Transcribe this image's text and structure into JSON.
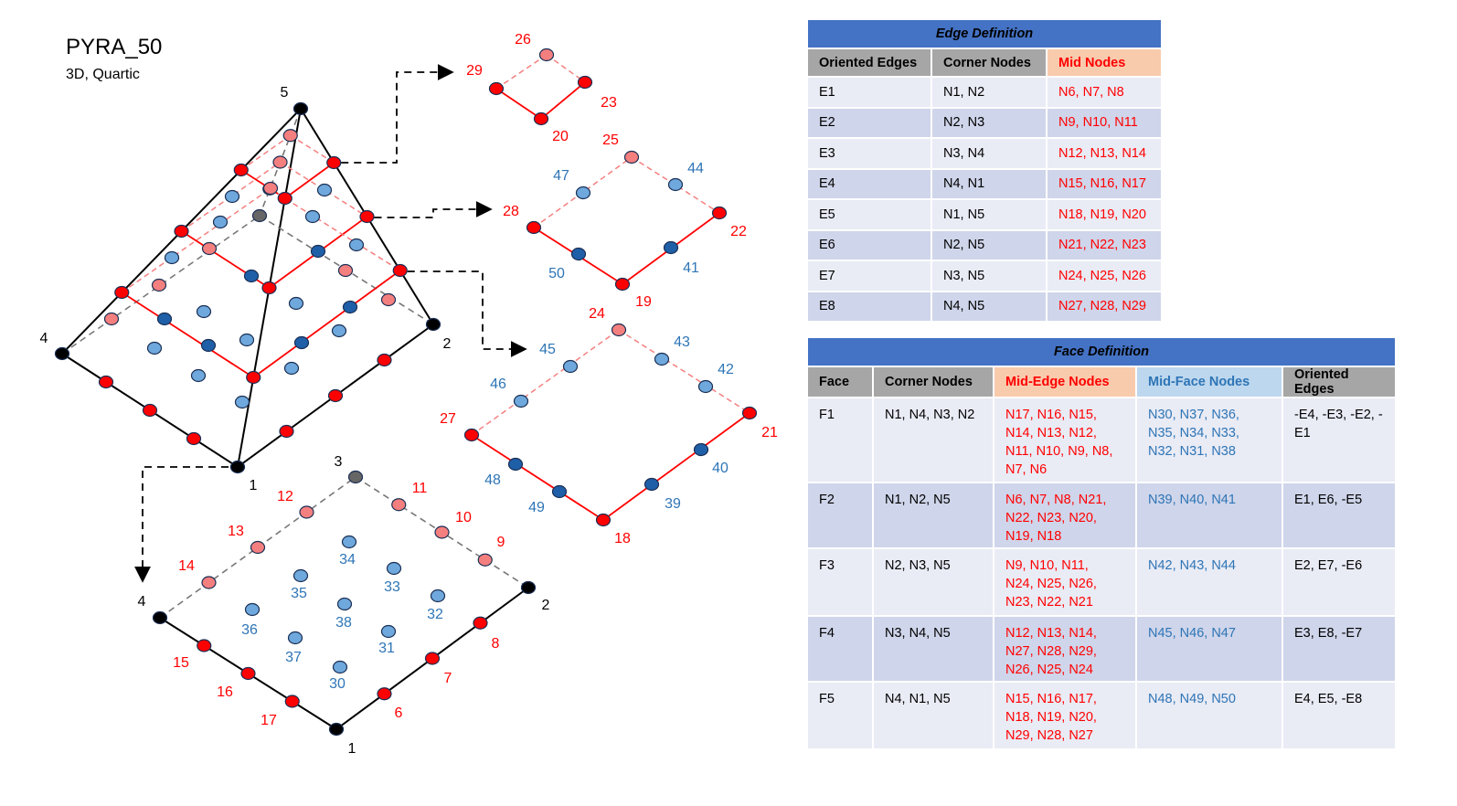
{
  "title": "PYRA_50",
  "subtitle": "3D, Quartic",
  "colors": {
    "corner_node": "#000000",
    "mid_edge_node": "#ff0000",
    "mid_edge_hidden_node": "#f47f7f",
    "mid_face_node": "#6fa8dc",
    "mid_face_dark_node": "#1f5fa8",
    "hidden_corner_node": "#666666",
    "edge_line": "#000000",
    "section_line": "#ff0000",
    "label_red": "#ff0000",
    "label_blue": "#2e75b6"
  },
  "pyramid_labels": {
    "apex": "5",
    "front": "1",
    "right": "2",
    "left": "4"
  },
  "base_labels": {
    "corners": {
      "c1": "1",
      "c2": "2",
      "c3": "3",
      "c4": "4"
    },
    "mid_edge": [
      "6",
      "7",
      "8",
      "9",
      "10",
      "11",
      "12",
      "13",
      "14",
      "15",
      "16",
      "17"
    ],
    "mid_face": [
      "30",
      "31",
      "32",
      "33",
      "34",
      "35",
      "36",
      "37",
      "38"
    ]
  },
  "section_top_labels": [
    "26",
    "29",
    "23",
    "20"
  ],
  "section_mid_labels": {
    "red": [
      "25",
      "28",
      "22",
      "19"
    ],
    "blue": [
      "47",
      "44",
      "50",
      "41"
    ]
  },
  "section_low_labels": {
    "red": [
      "24",
      "27",
      "21",
      "18"
    ],
    "blue": [
      "45",
      "43",
      "42",
      "46",
      "48",
      "40",
      "49",
      "39"
    ]
  },
  "edge_table": {
    "title": "Edge Definition",
    "headers": [
      "Oriented Edges",
      "Corner Nodes",
      "Mid Nodes"
    ],
    "rows": [
      [
        "E1",
        "N1, N2",
        "N6, N7, N8"
      ],
      [
        "E2",
        "N2, N3",
        "N9, N10, N11"
      ],
      [
        "E3",
        "N3, N4",
        "N12, N13, N14"
      ],
      [
        "E4",
        "N4, N1",
        "N15, N16, N17"
      ],
      [
        "E5",
        "N1, N5",
        "N18, N19, N20"
      ],
      [
        "E6",
        "N2, N5",
        "N21, N22, N23"
      ],
      [
        "E7",
        "N3, N5",
        "N24, N25, N26"
      ],
      [
        "E8",
        "N4, N5",
        "N27, N28, N29"
      ]
    ]
  },
  "face_table": {
    "title": "Face Definition",
    "headers": [
      "Face",
      "Corner Nodes",
      "Mid-Edge Nodes",
      "Mid-Face Nodes",
      "Oriented Edges"
    ],
    "rows": [
      [
        "F1",
        "N1, N4, N3, N2",
        "N17, N16, N15,\nN14, N13, N12,\nN11, N10, N9, N8,\nN7, N6",
        "N30, N37, N36,\nN35, N34, N33,\nN32, N31, N38",
        "-E4, -E3, -E2, -E1"
      ],
      [
        "F2",
        "N1, N2, N5",
        "N6, N7, N8, N21,\nN22, N23, N20,\nN19, N18",
        "N39, N40, N41",
        "E1, E6, -E5"
      ],
      [
        "F3",
        "N2, N3, N5",
        "N9, N10, N11,\nN24, N25, N26,\nN23, N22, N21",
        "N42, N43, N44",
        "E2, E7, -E6"
      ],
      [
        "F4",
        "N3, N4, N5",
        "N12, N13, N14,\nN27, N28, N29,\nN26, N25, N24",
        "N45, N46, N47",
        "E3, E8, -E7"
      ],
      [
        "F5",
        "N4, N1, N5",
        "N15, N16, N17,\nN18, N19, N20,\nN29, N28, N27",
        "N48, N49, N50",
        "E4, E5, -E8"
      ]
    ]
  }
}
